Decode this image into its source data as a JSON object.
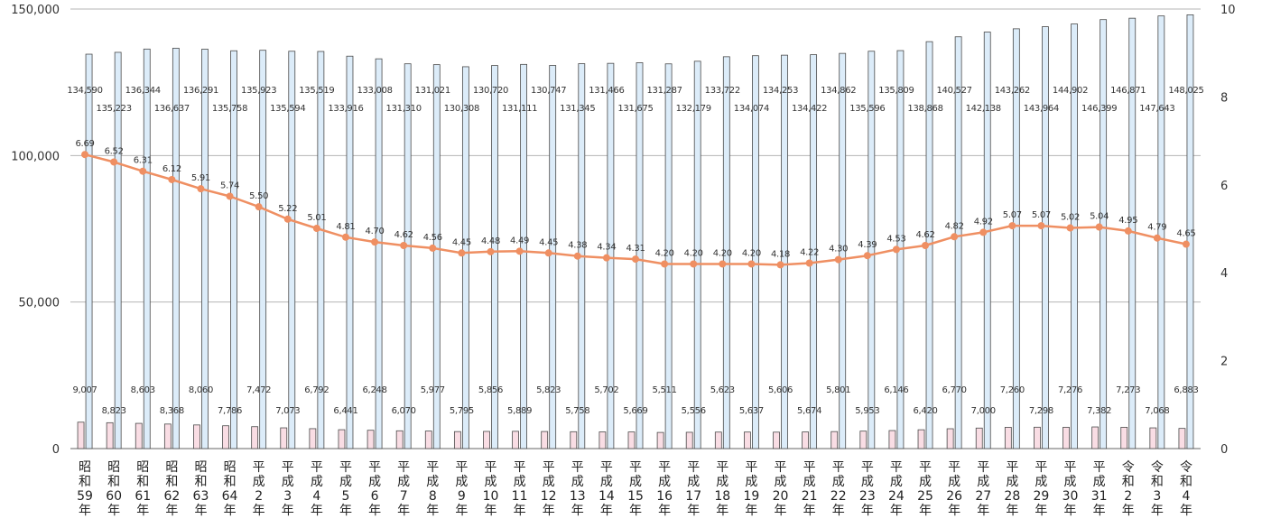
{
  "chart_data": {
    "type": "bar",
    "title": "",
    "xlabel": "",
    "ylabel": "",
    "ylim": [
      0,
      150000
    ],
    "y2lim": [
      0,
      10
    ],
    "grid": true,
    "left_ticks": [
      "0",
      "50,000",
      "100,000",
      "150,000"
    ],
    "right_ticks": [
      "0",
      "2",
      "4",
      "6",
      "8",
      "10"
    ],
    "categories": [
      "昭和59年",
      "昭和60年",
      "昭和61年",
      "昭和62年",
      "昭和63年",
      "昭和64年",
      "平成2年",
      "平成3年",
      "平成4年",
      "平成5年",
      "平成6年",
      "平成7年",
      "平成8年",
      "平成9年",
      "平成10年",
      "平成11年",
      "平成12年",
      "平成13年",
      "平成14年",
      "平成15年",
      "平成16年",
      "平成17年",
      "平成18年",
      "平成19年",
      "平成20年",
      "平成21年",
      "平成22年",
      "平成23年",
      "平成24年",
      "平成25年",
      "平成26年",
      "平成27年",
      "平成28年",
      "平成29年",
      "平成30年",
      "平成31年",
      "令和2年",
      "令和3年",
      "令和4年"
    ],
    "series": [
      {
        "type": "bar",
        "axis": "left",
        "color": "#f9dde4",
        "values": [
          9007,
          8823,
          8603,
          8368,
          8060,
          7786,
          7472,
          7073,
          6792,
          6441,
          6248,
          6070,
          5977,
          5795,
          5856,
          5889,
          5823,
          5758,
          5702,
          5669,
          5511,
          5556,
          5623,
          5637,
          5606,
          5674,
          5801,
          5953,
          6146,
          6420,
          6770,
          7000,
          7260,
          7298,
          7276,
          7382,
          7273,
          7068,
          6883
        ],
        "labels": [
          "9,007",
          "8,823",
          "8,603",
          "8,368",
          "8,060",
          "7,786",
          "7,472",
          "7,073",
          "6,792",
          "6,441",
          "6,248",
          "6,070",
          "5,977",
          "5,795",
          "5,856",
          "5,889",
          "5,823",
          "5,758",
          "5,702",
          "5,669",
          "5,511",
          "5,556",
          "5,623",
          "5,637",
          "5,606",
          "5,674",
          "5,801",
          "5,953",
          "6,146",
          "6,420",
          "6,770",
          "7,000",
          "7,260",
          "7,298",
          "7,276",
          "7,382",
          "7,273",
          "7,068",
          "6,883"
        ]
      },
      {
        "type": "bar",
        "axis": "left",
        "color": "#dcecf9",
        "values": [
          134590,
          135223,
          136344,
          136637,
          136291,
          135758,
          135923,
          135594,
          135519,
          133916,
          133008,
          131310,
          131021,
          130308,
          130720,
          131111,
          130747,
          131345,
          131466,
          131675,
          131287,
          132179,
          133722,
          134074,
          134253,
          134422,
          134862,
          135596,
          135809,
          138868,
          140527,
          142138,
          143262,
          143964,
          144902,
          146399,
          146871,
          147643,
          148025
        ],
        "labels": [
          "134,590",
          "135,223",
          "136,344",
          "136,637",
          "136,291",
          "135,758",
          "135,923",
          "135,594",
          "135,519",
          "133,916",
          "133,008",
          "131,310",
          "131,021",
          "130,308",
          "130,720",
          "131,111",
          "130,747",
          "131,345",
          "131,466",
          "131,675",
          "131,287",
          "132,179",
          "133,722",
          "134,074",
          "134,253",
          "134,422",
          "134,862",
          "135,596",
          "135,809",
          "138,868",
          "140,527",
          "142,138",
          "143,262",
          "143,964",
          "144,902",
          "146,399",
          "146,871",
          "147,643",
          "148,025"
        ]
      },
      {
        "type": "line",
        "axis": "right",
        "color": "#ef8f62",
        "values": [
          6.69,
          6.52,
          6.31,
          6.12,
          5.91,
          5.74,
          5.5,
          5.22,
          5.01,
          4.81,
          4.7,
          4.62,
          4.56,
          4.45,
          4.48,
          4.49,
          4.45,
          4.38,
          4.34,
          4.31,
          4.2,
          4.2,
          4.2,
          4.2,
          4.18,
          4.22,
          4.3,
          4.39,
          4.53,
          4.62,
          4.82,
          4.92,
          5.07,
          5.07,
          5.02,
          5.04,
          4.95,
          4.79,
          4.65
        ],
        "labels": [
          "6.69",
          "6.52",
          "6.31",
          "6.12",
          "5.91",
          "5.74",
          "5.50",
          "5.22",
          "5.01",
          "4.81",
          "4.70",
          "4.62",
          "4.56",
          "4.45",
          "4.48",
          "4.49",
          "4.45",
          "4.38",
          "4.34",
          "4.31",
          "4.20",
          "4.20",
          "4.20",
          "4.20",
          "4.18",
          "4.22",
          "4.30",
          "4.39",
          "4.53",
          "4.62",
          "4.82",
          "4.92",
          "5.07",
          "5.07",
          "5.02",
          "5.04",
          "4.95",
          "4.79",
          "4.65"
        ]
      }
    ]
  }
}
